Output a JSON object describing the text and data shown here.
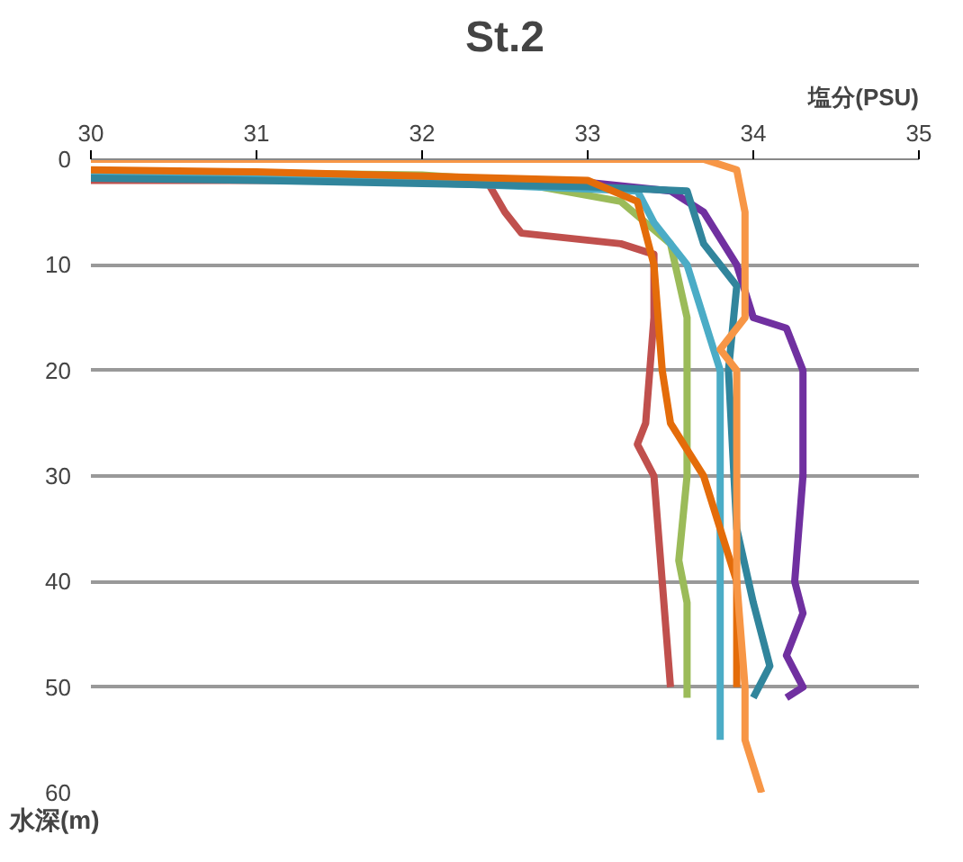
{
  "chart_data": {
    "type": "line",
    "title": "St.2",
    "xlabel": "塩分(PSU)",
    "ylabel": "水深(m)",
    "xlim": [
      30,
      35
    ],
    "xticks": [
      30,
      31,
      32,
      33,
      34,
      35
    ],
    "ylim": [
      60,
      0
    ],
    "yticks": [
      0,
      10,
      20,
      30,
      40,
      50,
      60
    ],
    "grid": "y",
    "marker": "none",
    "line_style": "solid",
    "series": [
      {
        "color": "#7030a0",
        "x": [
          32,
          33.0,
          33.5,
          33.7,
          33.9,
          34.0,
          34.2,
          34.3,
          34.3,
          34.25,
          34.3,
          34.2,
          34.3,
          34.2
        ],
        "values": [
          1.8,
          2.2,
          3,
          5,
          10,
          15,
          16,
          20,
          30,
          40,
          43,
          47,
          50,
          51
        ]
      },
      {
        "color": "#c0504d",
        "x": [
          30,
          31,
          32,
          32.4,
          32.5,
          32.6,
          33.2,
          33.4,
          33.4,
          33.35,
          33.3,
          33.4,
          33.45,
          33.5
        ],
        "values": [
          2,
          2,
          2,
          2.3,
          5,
          7,
          8,
          9,
          15,
          25,
          27,
          30,
          40,
          50
        ]
      },
      {
        "color": "#9bbb59",
        "x": [
          30,
          31,
          32,
          32.5,
          33.2,
          33.5,
          33.6,
          33.6,
          33.55,
          33.6,
          33.6
        ],
        "values": [
          1.2,
          1.3,
          1.5,
          2,
          4,
          8,
          15,
          30,
          38,
          42,
          51
        ]
      },
      {
        "color": "#4bacc6",
        "x": [
          30,
          31,
          32,
          33.3,
          33.4,
          33.6,
          33.8,
          33.8
        ],
        "values": [
          1.5,
          1.7,
          2.2,
          3,
          6,
          10,
          20,
          55
        ]
      },
      {
        "color": "#31859c",
        "x": [
          30,
          31,
          32,
          33,
          33.6,
          33.7,
          33.9,
          33.85,
          33.9,
          34.0,
          34.1,
          34.0
        ],
        "values": [
          1.8,
          2,
          2.3,
          2.6,
          3,
          8,
          12,
          20,
          35,
          42,
          48,
          51
        ]
      },
      {
        "color": "#e46c0a",
        "x": [
          30,
          31,
          32,
          33.0,
          33.3,
          33.4,
          33.45,
          33.5,
          33.7,
          33.9,
          33.9
        ],
        "values": [
          1,
          1.2,
          1.6,
          2,
          4,
          10,
          20,
          25,
          30,
          40,
          50
        ]
      },
      {
        "color": "#f79646",
        "x": [
          30,
          31,
          32,
          33,
          33.7,
          33.9,
          33.95,
          33.95,
          33.8,
          33.9,
          33.9,
          33.9,
          33.95,
          33.95,
          34.05
        ],
        "values": [
          0,
          0,
          0,
          0,
          0,
          1,
          5,
          15,
          18,
          20,
          30,
          40,
          50,
          55,
          60
        ]
      }
    ]
  }
}
